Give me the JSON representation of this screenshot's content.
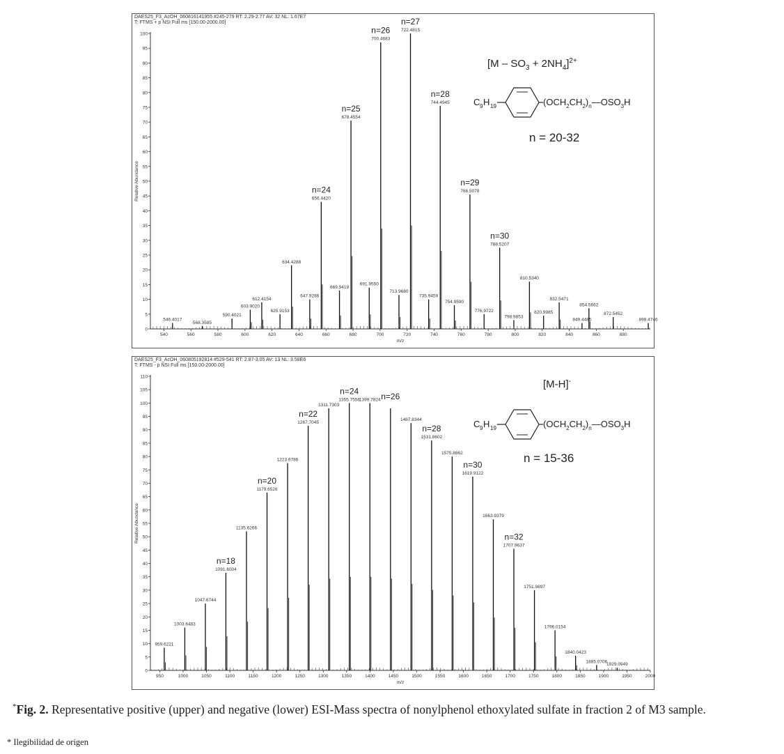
{
  "figure": {
    "caption_marker": "*",
    "caption_label": "Fig. 2.",
    "caption_text": "Representative positive (upper) and negative (lower) ESI-Mass spectra of nonylphenol ethoxylated sulfate in fraction 2 of M3 sample.",
    "footnote": "* Ilegibilidad de origen"
  },
  "chart_data": [
    {
      "type": "bar",
      "header_line1": "DAES25_F3_AcOH_060816141955 #245-279   RT: 2.29-2.77   AV: 32   NL: 1.67E7",
      "header_line2": "T: FTMS + p NSI Full ms [150.00-2000.00]",
      "xlabel": "m/z",
      "ylabel": "Relative Abundance",
      "xlim": [
        530,
        900
      ],
      "ylim": [
        0,
        100
      ],
      "xticks": [
        540,
        560,
        580,
        600,
        620,
        640,
        660,
        680,
        700,
        720,
        740,
        760,
        780,
        800,
        820,
        840,
        860,
        880
      ],
      "yticks": [
        0,
        5,
        10,
        15,
        20,
        25,
        30,
        35,
        40,
        45,
        50,
        55,
        60,
        65,
        70,
        75,
        80,
        85,
        90,
        95,
        100
      ],
      "ion_label": "[M – SO3 + 2NH4]2+",
      "formula_left": "C9H19",
      "formula_right": "(OCH2CH2)n–OSO3H",
      "n_range": "n = 20-32",
      "peaks": [
        {
          "x": 546.4017,
          "y": 2.0,
          "label": "546.4017"
        },
        {
          "x": 568.3585,
          "y": 1.0,
          "label": "568.3585"
        },
        {
          "x": 590.4021,
          "y": 3.5,
          "label": "590.4021"
        },
        {
          "x": 603.902,
          "y": 6.5,
          "label": "603.9020"
        },
        {
          "x": 612.4154,
          "y": 9.0,
          "label": "612.4154"
        },
        {
          "x": 625.9153,
          "y": 5.0,
          "label": "625.9153"
        },
        {
          "x": 634.4288,
          "y": 21.5,
          "label": "634.4288"
        },
        {
          "x": 647.9286,
          "y": 10.0,
          "label": "647.9286"
        },
        {
          "x": 656.442,
          "y": 43.0,
          "label": "656.4420"
        },
        {
          "x": 669.9419,
          "y": 13.0,
          "label": "669.9419"
        },
        {
          "x": 678.4554,
          "y": 70.5,
          "label": "678.4554"
        },
        {
          "x": 691.955,
          "y": 14.0,
          "label": "691.9550"
        },
        {
          "x": 700.4683,
          "y": 97.0,
          "label": "700.4683"
        },
        {
          "x": 713.968,
          "y": 11.5,
          "label": "713.9680"
        },
        {
          "x": 722.4815,
          "y": 100.0,
          "label": "722.4815"
        },
        {
          "x": 735.9459,
          "y": 10.0,
          "label": "735.9459"
        },
        {
          "x": 744.4945,
          "y": 75.5,
          "label": "744.4945"
        },
        {
          "x": 754.959,
          "y": 8.0,
          "label": "754.9590"
        },
        {
          "x": 766.5078,
          "y": 45.5,
          "label": "766.5078"
        },
        {
          "x": 776.9722,
          "y": 5.0,
          "label": "776.9722"
        },
        {
          "x": 788.5207,
          "y": 27.5,
          "label": "788.5207"
        },
        {
          "x": 798.9853,
          "y": 3.0,
          "label": "798.9853"
        },
        {
          "x": 810.534,
          "y": 16.0,
          "label": "810.5340"
        },
        {
          "x": 820.9985,
          "y": 4.5,
          "label": "820.9985"
        },
        {
          "x": 832.5471,
          "y": 9.0,
          "label": "832.5471"
        },
        {
          "x": 849.4485,
          "y": 2.0,
          "label": "849.4485"
        },
        {
          "x": 854.5662,
          "y": 7.0,
          "label": "854.5662"
        },
        {
          "x": 872.5452,
          "y": 4.0,
          "label": "872.5452"
        },
        {
          "x": 898.4746,
          "y": 2.0,
          "label": "898.4746"
        }
      ],
      "n_labels": [
        {
          "x": 656.442,
          "text": "n=24"
        },
        {
          "x": 678.4554,
          "text": "n=25"
        },
        {
          "x": 700.4683,
          "text": "n=26"
        },
        {
          "x": 722.4815,
          "text": "n=27"
        },
        {
          "x": 744.4945,
          "text": "n=28"
        },
        {
          "x": 766.5078,
          "text": "n=29"
        },
        {
          "x": 788.5207,
          "text": "n=30"
        }
      ]
    },
    {
      "type": "bar",
      "header_line1": "DAES25_F3_AcOH_060805192814 #529-541   RT: 2.87-3.05   AV: 13   NL: 3.58E6",
      "header_line2": "T: FTMS - p NSI Full ms [150.00-2000.00]",
      "xlabel": "m/z",
      "ylabel": "Relative Abundance",
      "xlim": [
        930,
        2000
      ],
      "ylim": [
        0,
        110
      ],
      "xticks": [
        950,
        1000,
        1050,
        1100,
        1150,
        1200,
        1250,
        1300,
        1350,
        1400,
        1450,
        1500,
        1550,
        1600,
        1650,
        1700,
        1750,
        1800,
        1850,
        1900,
        1950,
        2000
      ],
      "yticks": [
        0,
        5,
        10,
        15,
        20,
        25,
        30,
        35,
        40,
        45,
        50,
        55,
        60,
        65,
        70,
        75,
        80,
        85,
        90,
        95,
        100,
        105,
        110
      ],
      "ion_label": "[M-H]-",
      "formula_left": "C9H19",
      "formula_right": "(OCH2CH2)n–OSO3H",
      "n_range": "n = 15-36",
      "peaks": [
        {
          "x": 959.6221,
          "y": 8.5,
          "label": "959.6221"
        },
        {
          "x": 1003.6483,
          "y": 16.0,
          "label": "1003.6483"
        },
        {
          "x": 1047.6744,
          "y": 25.0,
          "label": "1047.6744"
        },
        {
          "x": 1091.6004,
          "y": 36.5,
          "label": "1091.6004"
        },
        {
          "x": 1135.6266,
          "y": 52.0,
          "label": "1135.6266"
        },
        {
          "x": 1179.6526,
          "y": 66.5,
          "label": "1179.6526"
        },
        {
          "x": 1223.6786,
          "y": 77.5,
          "label": "1223.6786"
        },
        {
          "x": 1267.7045,
          "y": 91.5,
          "label": "1267.7045"
        },
        {
          "x": 1311.7303,
          "y": 98.0,
          "label": "1311.7303"
        },
        {
          "x": 1355.7556,
          "y": 100.0,
          "label": "1355.7556"
        },
        {
          "x": 1399.7824,
          "y": 100.0,
          "label": "1399.7824"
        },
        {
          "x": 1443.8082,
          "y": 98.0,
          "label": ""
        },
        {
          "x": 1487.8344,
          "y": 92.5,
          "label": "1487.8344"
        },
        {
          "x": 1531.8602,
          "y": 86.0,
          "label": "1531.8602"
        },
        {
          "x": 1575.8862,
          "y": 80.0,
          "label": "1575.8862"
        },
        {
          "x": 1619.9122,
          "y": 72.5,
          "label": "1619.9122"
        },
        {
          "x": 1663.9379,
          "y": 56.5,
          "label": "1663.9379"
        },
        {
          "x": 1707.9637,
          "y": 45.5,
          "label": "1707.9637"
        },
        {
          "x": 1751.9897,
          "y": 30.0,
          "label": "1751.9897"
        },
        {
          "x": 1796.0154,
          "y": 15.0,
          "label": "1796.0154"
        },
        {
          "x": 1840.0423,
          "y": 5.5,
          "label": "1840.0423"
        },
        {
          "x": 1885.0706,
          "y": 2.0,
          "label": "1885.0706"
        },
        {
          "x": 1929.0949,
          "y": 1.0,
          "label": "1929.0949"
        }
      ],
      "n_labels": [
        {
          "x": 1091.6004,
          "text": "n=18"
        },
        {
          "x": 1179.6526,
          "text": "n=20"
        },
        {
          "x": 1267.7045,
          "text": "n=22"
        },
        {
          "x": 1355.7556,
          "text": "n=24"
        },
        {
          "x": 1443.8082,
          "text": "n=26"
        },
        {
          "x": 1531.8602,
          "text": "n=28"
        },
        {
          "x": 1619.9122,
          "text": "n=30"
        },
        {
          "x": 1707.9637,
          "text": "n=32"
        }
      ]
    }
  ]
}
